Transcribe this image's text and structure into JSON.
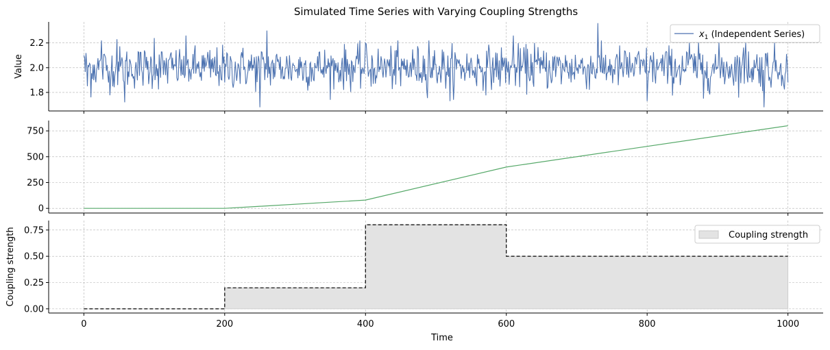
{
  "title": "Simulated Time Series with Varying Coupling Strengths",
  "colors": {
    "series_x1": "#4c72b0",
    "series_mid": "#55a868",
    "fill": "#e3e3e3",
    "fill_edge": "#c8c8c8",
    "step_line": "#000000",
    "grid": "#b0b0b0"
  },
  "chart_data": [
    {
      "type": "line",
      "panel": "top",
      "xlabel": "",
      "ylabel": "Value",
      "xlim": [
        -50,
        1050
      ],
      "ylim": [
        1.65,
        2.37
      ],
      "yticks": [
        1.8,
        2.0,
        2.2
      ],
      "yticklabels": [
        "1.8",
        "2.0",
        "2.2"
      ],
      "grid": true,
      "legend_position": "top-right",
      "legend": {
        "prefix": "x",
        "subscript": "1",
        "suffix": " (Independent Series)"
      },
      "series": [
        {
          "name": "x1 (Independent Series)",
          "noise": {
            "n": 1000,
            "mean": 2.0,
            "std": 0.1
          },
          "peaks": [
            [
              0,
              2.1
            ],
            [
              5,
              1.85
            ],
            [
              10,
              1.76
            ],
            [
              25,
              2.22
            ],
            [
              35,
              1.88
            ],
            [
              47,
              2.23
            ],
            [
              58,
              1.72
            ],
            [
              100,
              2.24
            ],
            [
              145,
              2.26
            ],
            [
              200,
              1.88
            ],
            [
              250,
              1.68
            ],
            [
              260,
              2.3
            ],
            [
              400,
              2.2
            ],
            [
              450,
              1.85
            ],
            [
              490,
              2.22
            ],
            [
              520,
              1.73
            ],
            [
              610,
              2.26
            ],
            [
              640,
              2.2
            ],
            [
              730,
              2.36
            ],
            [
              800,
              1.73
            ],
            [
              860,
              2.2
            ],
            [
              880,
              1.75
            ],
            [
              940,
              2.2
            ],
            [
              966,
              1.68
            ],
            [
              1000,
              1.88
            ]
          ]
        }
      ]
    },
    {
      "type": "line",
      "panel": "middle",
      "xlabel": "",
      "ylabel": "",
      "xlim": [
        -50,
        1050
      ],
      "ylim": [
        -45,
        850
      ],
      "yticks": [
        0,
        250,
        500,
        750
      ],
      "yticklabels": [
        "0",
        "250",
        "500",
        "750"
      ],
      "grid": true,
      "series": [
        {
          "name": "",
          "x": [
            0,
            200,
            400,
            600,
            1000
          ],
          "y": [
            0,
            0,
            80,
            400,
            800
          ]
        }
      ]
    },
    {
      "type": "area",
      "panel": "bottom",
      "xlabel": "Time",
      "ylabel": "Coupling strength",
      "xlim": [
        -50,
        1050
      ],
      "ylim": [
        -0.04,
        0.84
      ],
      "xticks": [
        0,
        200,
        400,
        600,
        800,
        1000
      ],
      "xticklabels": [
        "0",
        "200",
        "400",
        "600",
        "800",
        "1000"
      ],
      "yticks": [
        0.0,
        0.25,
        0.5,
        0.75
      ],
      "yticklabels": [
        "0.00",
        "0.25",
        "0.50",
        "0.75"
      ],
      "grid": true,
      "legend_position": "top-right",
      "legend": {
        "label": "Coupling strength"
      },
      "series": [
        {
          "name": "Coupling strength",
          "x": [
            0,
            200,
            400,
            600,
            1000
          ],
          "y": [
            0,
            0.2,
            0.8,
            0.5,
            0.5
          ],
          "step": "post"
        }
      ]
    }
  ]
}
